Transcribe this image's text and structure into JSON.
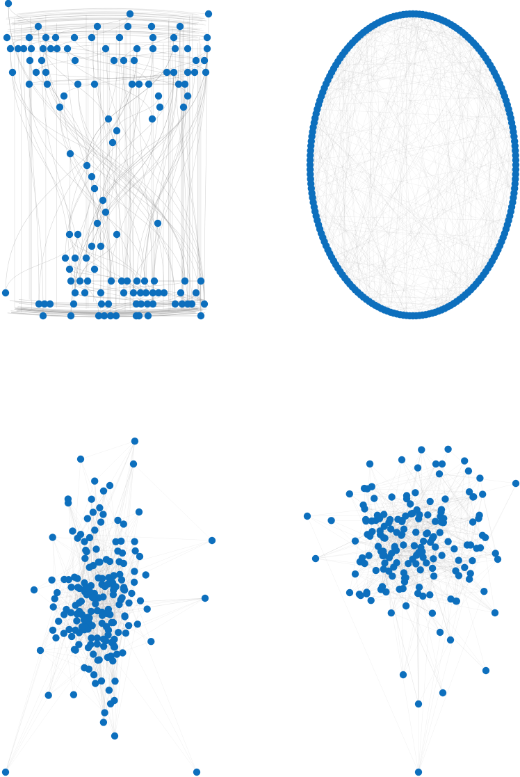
{
  "figure": {
    "panel_count": 4,
    "node_color": "#0d6fbd",
    "edge_color": "#7a7a7a",
    "background": "#ffffff"
  },
  "panels": [
    {
      "id": "hierarchical",
      "layout": "hierarchical",
      "directed": true
    },
    {
      "id": "circular",
      "layout": "circular",
      "directed": true,
      "node_count": 200
    },
    {
      "id": "force-a",
      "layout": "force-directed",
      "directed": true
    },
    {
      "id": "force-b",
      "layout": "force-directed",
      "directed": true
    }
  ]
}
